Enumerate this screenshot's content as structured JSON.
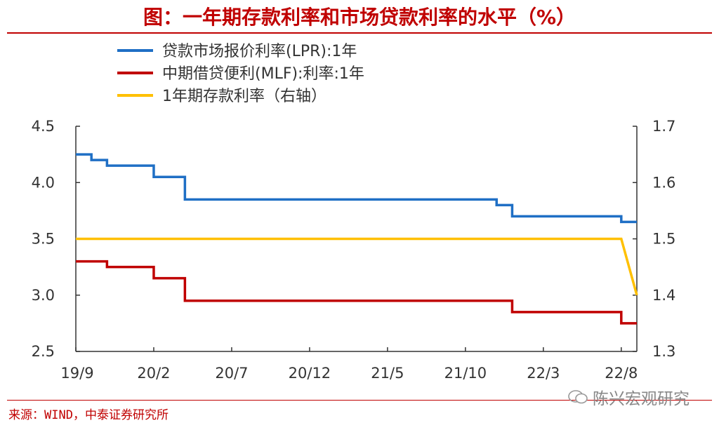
{
  "title": "图：一年期存款利率和市场贷款利率的水平（%）",
  "source": "来源：WIND，中泰证券研究所",
  "watermark": "陈兴宏观研究",
  "chart_data": {
    "type": "line",
    "x_ticks": [
      "19/9",
      "20/2",
      "20/7",
      "20/12",
      "21/5",
      "21/10",
      "22/3",
      "22/8"
    ],
    "x_range": [
      "2019-09",
      "2022-09"
    ],
    "left_axis": {
      "ylim": [
        2.5,
        4.5
      ],
      "ticks": [
        "4.5",
        "4.0",
        "3.5",
        "3.0",
        "2.5"
      ]
    },
    "right_axis": {
      "ylim": [
        1.3,
        1.7
      ],
      "ticks": [
        "1.7",
        "1.6",
        "1.5",
        "1.4",
        "1.3"
      ]
    },
    "series": [
      {
        "name": "贷款市场报价利率(LPR):1年",
        "color": "#1f6fc5",
        "axis": "left",
        "step": true,
        "points": [
          [
            "2019-09",
            4.25
          ],
          [
            "2019-10",
            4.2
          ],
          [
            "2019-11",
            4.15
          ],
          [
            "2020-02",
            4.05
          ],
          [
            "2020-04",
            3.85
          ],
          [
            "2021-12",
            3.8
          ],
          [
            "2022-01",
            3.7
          ],
          [
            "2022-08",
            3.65
          ],
          [
            "2022-09",
            3.65
          ]
        ]
      },
      {
        "name": "中期借贷便利(MLF):利率:1年",
        "color": "#c00000",
        "axis": "left",
        "step": true,
        "points": [
          [
            "2019-09",
            3.3
          ],
          [
            "2019-11",
            3.25
          ],
          [
            "2020-02",
            3.15
          ],
          [
            "2020-04",
            2.95
          ],
          [
            "2022-01",
            2.85
          ],
          [
            "2022-08",
            2.75
          ],
          [
            "2022-09",
            2.75
          ]
        ]
      },
      {
        "name": "1年期存款利率（右轴）",
        "color": "#ffc000",
        "axis": "right",
        "step": false,
        "points": [
          [
            "2019-09",
            1.5
          ],
          [
            "2022-08",
            1.5
          ],
          [
            "2022-09",
            1.4
          ]
        ]
      }
    ],
    "legend_position": "top-left",
    "grid": false
  }
}
